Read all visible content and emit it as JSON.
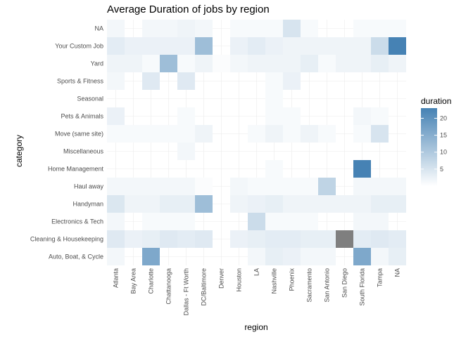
{
  "chart_data": {
    "type": "heatmap",
    "title": "Average Duration of jobs by region",
    "xlabel": "region",
    "ylabel": "category",
    "x": [
      "Atlanta",
      "Bay Area",
      "Charlotte",
      "Chattanooga",
      "Dallas - Ft Worth",
      "DC/Baltimore",
      "Denver",
      "Houston",
      "LA",
      "Nashville",
      "Phoenix",
      "Sacramento",
      "San Antonio",
      "San Diego",
      "South Florida",
      "Tampa",
      "NA"
    ],
    "y": [
      "Auto, Boat, & Cycle",
      "Cleaning & Housekeeping",
      "Electronics & Tech",
      "Handyman",
      "Haul away",
      "Home Management",
      "Miscellaneous",
      "Move (same site)",
      "Pets & Animals",
      "Seasonal",
      "Sports & Fitness",
      "Yard",
      "Your Custom Job",
      "NA"
    ],
    "values": [
      [
        1.5,
        null,
        16,
        null,
        null,
        null,
        null,
        null,
        1.5,
        3,
        2.5,
        1.5,
        1.5,
        null,
        16,
        1.5,
        3
      ],
      [
        4,
        2.5,
        3,
        4,
        3.5,
        4,
        null,
        2.5,
        3,
        3.5,
        3.5,
        3,
        3,
        null,
        3.5,
        4,
        3.5
      ],
      [
        1.5,
        null,
        1,
        1,
        1,
        null,
        null,
        null,
        6.5,
        1,
        1,
        1,
        null,
        null,
        1.5,
        1.5,
        null
      ],
      [
        4.5,
        2,
        2,
        3,
        3,
        12,
        null,
        2,
        2.5,
        3,
        2,
        2,
        2,
        2,
        2,
        3,
        3
      ],
      [
        1.5,
        1.5,
        1.5,
        1.5,
        1.5,
        0.5,
        null,
        1.5,
        1,
        1,
        1,
        1,
        8,
        null,
        1.5,
        1.5,
        1.5
      ],
      [
        null,
        null,
        null,
        null,
        null,
        null,
        null,
        null,
        null,
        1,
        null,
        null,
        null,
        null,
        23,
        null,
        null
      ],
      [
        null,
        null,
        null,
        null,
        1.5,
        null,
        null,
        null,
        null,
        null,
        null,
        null,
        null,
        null,
        null,
        null,
        null
      ],
      [
        1,
        1,
        1,
        1,
        1,
        2,
        null,
        null,
        1,
        2,
        1,
        2,
        1,
        null,
        1,
        5,
        null
      ],
      [
        2.5,
        null,
        null,
        null,
        1,
        null,
        null,
        null,
        null,
        1,
        1,
        null,
        null,
        null,
        1.5,
        1,
        null
      ],
      [
        null,
        null,
        null,
        null,
        null,
        null,
        null,
        null,
        null,
        1,
        null,
        null,
        null,
        null,
        null,
        null,
        null
      ],
      [
        1.5,
        null,
        4,
        null,
        4,
        null,
        null,
        null,
        null,
        1,
        2.5,
        null,
        null,
        null,
        null,
        null,
        null
      ],
      [
        2,
        2,
        1,
        12,
        1,
        2,
        0.5,
        1.5,
        2,
        2,
        2,
        3,
        1,
        2,
        2,
        3,
        2
      ],
      [
        3.5,
        2.5,
        2.5,
        2.5,
        2.5,
        12,
        null,
        2.5,
        3.5,
        2.5,
        2,
        2,
        2,
        2,
        2,
        6.5,
        23
      ],
      [
        1.5,
        null,
        1.5,
        1.5,
        2,
        1.5,
        null,
        1,
        1,
        1,
        5,
        1,
        null,
        null,
        1,
        1,
        1
      ]
    ],
    "special_cells": [
      {
        "x": "San Diego",
        "y": "Cleaning & Housekeeping",
        "value": "NA",
        "color": "#7f7f7f"
      }
    ],
    "colorscale": {
      "low": "#ffffff",
      "high": "#4682b4",
      "range": [
        0,
        23
      ]
    },
    "legend": {
      "title": "duration",
      "ticks": [
        5,
        10,
        15,
        20
      ],
      "placement": "right"
    },
    "grid": true
  }
}
